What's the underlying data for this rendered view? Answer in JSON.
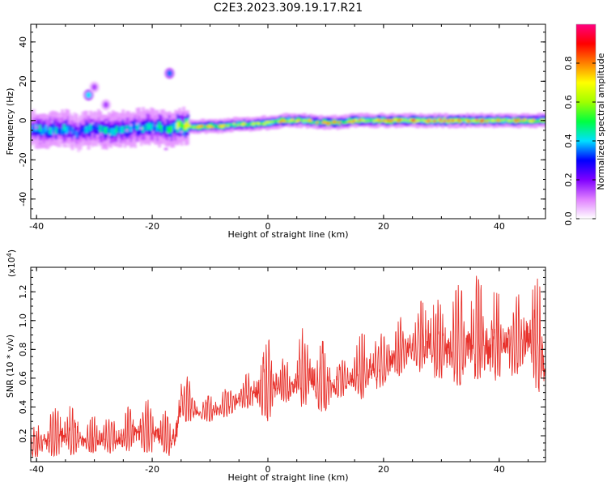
{
  "figure_title": "C2E3.2023.309.19.17.R21",
  "chart_data": [
    {
      "type": "heatmap",
      "xlabel": "Height of straight line (km)",
      "ylabel": "Frequency (Hz)",
      "xlim": [
        -41,
        48
      ],
      "ylim": [
        -50,
        49
      ],
      "xticks": [
        -40,
        -20,
        0,
        20,
        40
      ],
      "yticks": [
        -40,
        -20,
        0,
        20,
        40
      ],
      "colorbar": {
        "label": "Normalized spectral amplitude",
        "range": [
          0.0,
          1.0
        ],
        "ticks": [
          0.0,
          0.2,
          0.4,
          0.6,
          0.8
        ],
        "colors": [
          "#ffffff",
          "#e080ff",
          "#8000ff",
          "#0000ff",
          "#00e0ff",
          "#00ff40",
          "#a0ff00",
          "#ffff00",
          "#ff8000",
          "#ff0000",
          "#ff0080"
        ]
      },
      "dominant_frequency_track": {
        "x": [
          -41,
          -38,
          -35,
          -33,
          -30,
          -27,
          -24,
          -21,
          -18,
          -15,
          -12,
          -9,
          -6,
          -3,
          0,
          3,
          6,
          9,
          12,
          15,
          18,
          21,
          24,
          27,
          30,
          33,
          36,
          39,
          42,
          45,
          47
        ],
        "y": [
          -4,
          -5,
          -4,
          -6,
          -4,
          -5,
          -4,
          -3,
          -4,
          -3,
          -3,
          -3,
          -2,
          -2,
          -1,
          0,
          0,
          -1,
          -1,
          0,
          0,
          0,
          0,
          0,
          0,
          0,
          0,
          0,
          0,
          0,
          0
        ],
        "amplitude": [
          0.45,
          0.5,
          0.45,
          0.4,
          0.5,
          0.45,
          0.5,
          0.55,
          0.5,
          0.75,
          0.85,
          0.8,
          0.75,
          0.7,
          0.7,
          0.85,
          0.8,
          0.75,
          0.8,
          0.85,
          0.9,
          0.85,
          0.95,
          0.95,
          0.95,
          0.95,
          0.95,
          0.9,
          0.9,
          0.85,
          0.9
        ]
      },
      "secondary_blobs": [
        {
          "x": -31,
          "y": 13,
          "amplitude": 0.4
        },
        {
          "x": -30,
          "y": 17,
          "amplitude": 0.15
        },
        {
          "x": -17,
          "y": 24,
          "amplitude": 0.35
        },
        {
          "x": -28,
          "y": 8,
          "amplitude": 0.15
        }
      ]
    },
    {
      "type": "line",
      "xlabel": "Height of straight line (km)",
      "ylabel": "SNR (10 * v/v)",
      "scale_label": "(x10",
      "scale_exponent": "4",
      "xlim": [
        -41,
        48
      ],
      "ylim": [
        0.02,
        1.37
      ],
      "xticks": [
        -40,
        -20,
        0,
        20,
        40
      ],
      "yticks": [
        0.2,
        0.4,
        0.6,
        0.8,
        1.0,
        1.2
      ],
      "color": "#e8322c",
      "envelope": {
        "x": [
          -41,
          -38,
          -35,
          -32,
          -29,
          -26,
          -23,
          -20,
          -17,
          -16,
          -15,
          -12,
          -9,
          -6,
          -3,
          0,
          2,
          4,
          6,
          8,
          10,
          12,
          14,
          16,
          18,
          20,
          22,
          24,
          26,
          28,
          30,
          32,
          34,
          36,
          38,
          40,
          42,
          44,
          46,
          47,
          48
        ],
        "low": [
          0.05,
          0.06,
          0.06,
          0.08,
          0.08,
          0.08,
          0.1,
          0.08,
          0.06,
          0.05,
          0.3,
          0.3,
          0.3,
          0.35,
          0.4,
          0.3,
          0.45,
          0.42,
          0.4,
          0.4,
          0.35,
          0.45,
          0.5,
          0.45,
          0.5,
          0.55,
          0.6,
          0.65,
          0.65,
          0.6,
          0.6,
          0.55,
          0.55,
          0.6,
          0.55,
          0.6,
          0.6,
          0.65,
          0.6,
          0.4,
          0.55
        ],
        "high": [
          0.25,
          0.35,
          0.45,
          0.3,
          0.35,
          0.32,
          0.45,
          0.45,
          0.35,
          0.4,
          0.7,
          0.45,
          0.5,
          0.55,
          0.65,
          0.88,
          0.75,
          0.7,
          0.95,
          0.88,
          0.85,
          0.7,
          0.75,
          0.9,
          0.95,
          0.9,
          1.0,
          1.05,
          1.1,
          1.25,
          1.1,
          1.2,
          1.3,
          1.32,
          1.25,
          1.2,
          1.2,
          1.2,
          1.3,
          1.35,
          0.8
        ]
      }
    }
  ]
}
